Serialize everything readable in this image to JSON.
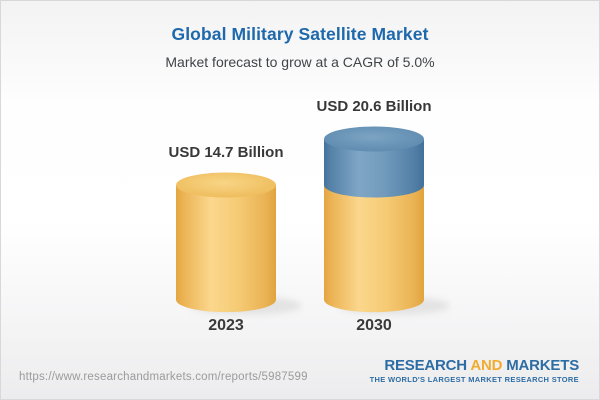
{
  "header": {
    "title": "Global Military Satellite Market",
    "subtitle": "Market forecast to grow at a CAGR of 5.0%"
  },
  "chart_data": {
    "type": "bar",
    "subtype": "3d-cylinder",
    "title": "Global Military Satellite Market",
    "subtitle": "Market forecast to grow at a CAGR of 5.0%",
    "cagr_percent": 5.0,
    "unit": "USD Billion",
    "categories": [
      "2023",
      "2030"
    ],
    "values": [
      14.7,
      20.6
    ],
    "value_labels": [
      "USD 14.7 Billion",
      "USD 20.6 Billion"
    ],
    "base_value": 14.7,
    "legend": "none",
    "colors": {
      "current_segment": "#F3C76D",
      "growth_segment": "#6493B8",
      "label_text": "#383838",
      "title_blue": "#1E68AC"
    }
  },
  "footer": {
    "url": "https://www.researchandmarkets.com/reports/5987599",
    "logo": {
      "word1": "RESEARCH",
      "word2": "AND",
      "word3": "MARKETS",
      "tagline": "THE WORLD'S LARGEST MARKET RESEARCH STORE",
      "blue": "#2E6DA4",
      "gold": "#F1AC30"
    }
  }
}
